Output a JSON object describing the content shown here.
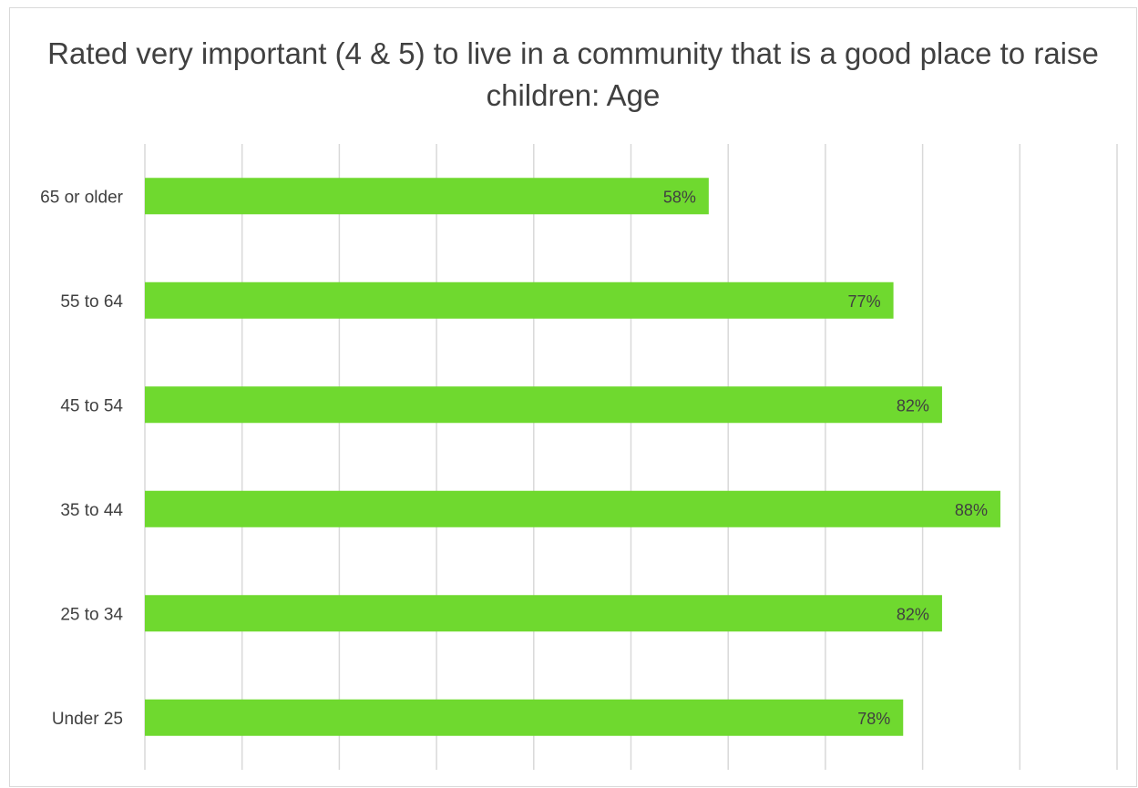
{
  "chart_data": {
    "type": "bar",
    "orientation": "horizontal",
    "title": "Rated very important (4 & 5) to live in a community that is a good place to raise children: Age",
    "categories": [
      "65 or older",
      "55 to 64",
      "45 to 54",
      "35 to 44",
      "25 to 34",
      "Under 25"
    ],
    "values": [
      58,
      77,
      82,
      88,
      82,
      78
    ],
    "data_labels": [
      "58%",
      "77%",
      "82%",
      "88%",
      "82%",
      "78%"
    ],
    "xlim": [
      0,
      100
    ],
    "gridlines": true,
    "legend": "none",
    "bar_color": "#6fd92f"
  }
}
